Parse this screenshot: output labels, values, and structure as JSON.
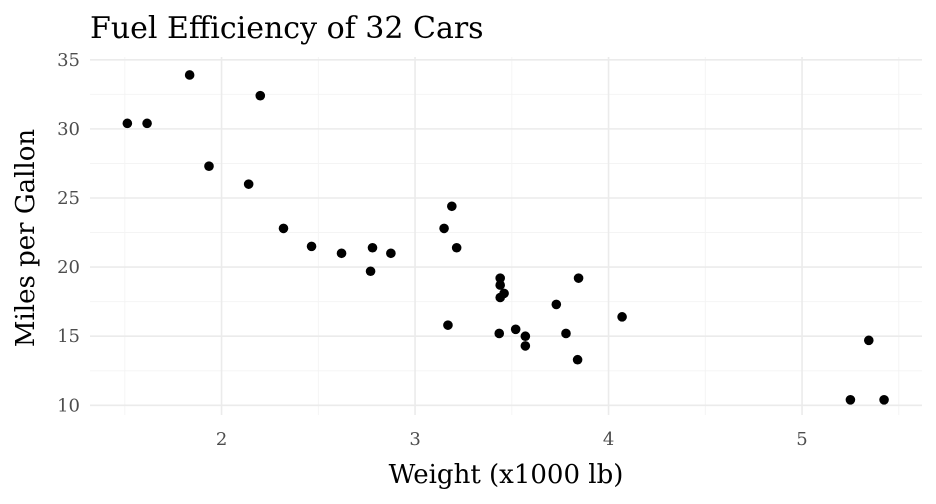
{
  "chart_data": {
    "type": "scatter",
    "title": "Fuel Efficiency of 32 Cars",
    "xlabel": "Weight (x1000 lb)",
    "ylabel": "Miles per Gallon",
    "xlim": [
      1.32,
      5.62
    ],
    "ylim": [
      9.3,
      35.2
    ],
    "xticks": [
      2,
      3,
      4,
      5
    ],
    "yticks": [
      10,
      15,
      20,
      25,
      30,
      35
    ],
    "grid": true,
    "point_color": "#000000",
    "points": [
      {
        "x": 2.62,
        "y": 21.0
      },
      {
        "x": 2.875,
        "y": 21.0
      },
      {
        "x": 2.32,
        "y": 22.8
      },
      {
        "x": 3.215,
        "y": 21.4
      },
      {
        "x": 3.44,
        "y": 18.7
      },
      {
        "x": 3.46,
        "y": 18.1
      },
      {
        "x": 3.57,
        "y": 14.3
      },
      {
        "x": 3.19,
        "y": 24.4
      },
      {
        "x": 3.15,
        "y": 22.8
      },
      {
        "x": 3.44,
        "y": 19.2
      },
      {
        "x": 3.44,
        "y": 17.8
      },
      {
        "x": 4.07,
        "y": 16.4
      },
      {
        "x": 3.73,
        "y": 17.3
      },
      {
        "x": 3.78,
        "y": 15.2
      },
      {
        "x": 5.25,
        "y": 10.4
      },
      {
        "x": 5.424,
        "y": 10.4
      },
      {
        "x": 5.345,
        "y": 14.7
      },
      {
        "x": 2.2,
        "y": 32.4
      },
      {
        "x": 1.615,
        "y": 30.4
      },
      {
        "x": 1.835,
        "y": 33.9
      },
      {
        "x": 2.465,
        "y": 21.5
      },
      {
        "x": 3.52,
        "y": 15.5
      },
      {
        "x": 3.435,
        "y": 15.2
      },
      {
        "x": 3.84,
        "y": 13.3
      },
      {
        "x": 3.845,
        "y": 19.2
      },
      {
        "x": 1.935,
        "y": 27.3
      },
      {
        "x": 2.14,
        "y": 26.0
      },
      {
        "x": 1.513,
        "y": 30.4
      },
      {
        "x": 3.17,
        "y": 15.8
      },
      {
        "x": 2.77,
        "y": 19.7
      },
      {
        "x": 3.57,
        "y": 15.0
      },
      {
        "x": 2.78,
        "y": 21.4
      }
    ]
  }
}
